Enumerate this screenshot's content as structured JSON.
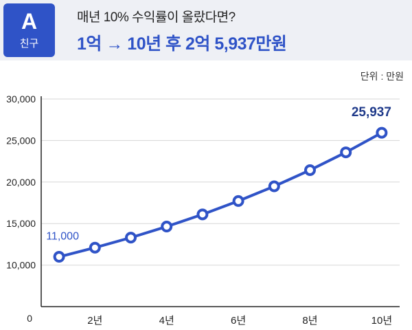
{
  "header": {
    "badge_letter": "A",
    "badge_label": "친구",
    "question": "매년 10% 수익률이 올랐다면?",
    "answer": "1억 → 10년 후 2억 5,937만원"
  },
  "unit_label": "단위 : 만원",
  "colors": {
    "accent": "#2f53c7",
    "line": "#2f53c7",
    "header_bg": "#eef0f5"
  },
  "chart_data": {
    "type": "line",
    "x": [
      1,
      2,
      3,
      4,
      5,
      6,
      7,
      8,
      9,
      10
    ],
    "series": [
      {
        "values": [
          11000,
          12100,
          13310,
          14641,
          16105,
          17716,
          19487,
          21436,
          23579,
          25937
        ]
      }
    ],
    "x_tick_labels": [
      {
        "x": 2,
        "label": "2년"
      },
      {
        "x": 4,
        "label": "4년"
      },
      {
        "x": 6,
        "label": "6년"
      },
      {
        "x": 8,
        "label": "8년"
      },
      {
        "x": 10,
        "label": "10년"
      }
    ],
    "y_tick_labels": [
      "0",
      "10,000",
      "15,000",
      "20,000",
      "25,000",
      "30,000"
    ],
    "y_ticks": [
      10000,
      15000,
      20000,
      25000,
      30000
    ],
    "ylim": [
      5000,
      30000
    ],
    "xlim": [
      0.5,
      10.5
    ],
    "grid": true,
    "data_labels": [
      {
        "x": 1,
        "label": "11,000"
      },
      {
        "x": 10,
        "label": "25,937"
      }
    ]
  }
}
